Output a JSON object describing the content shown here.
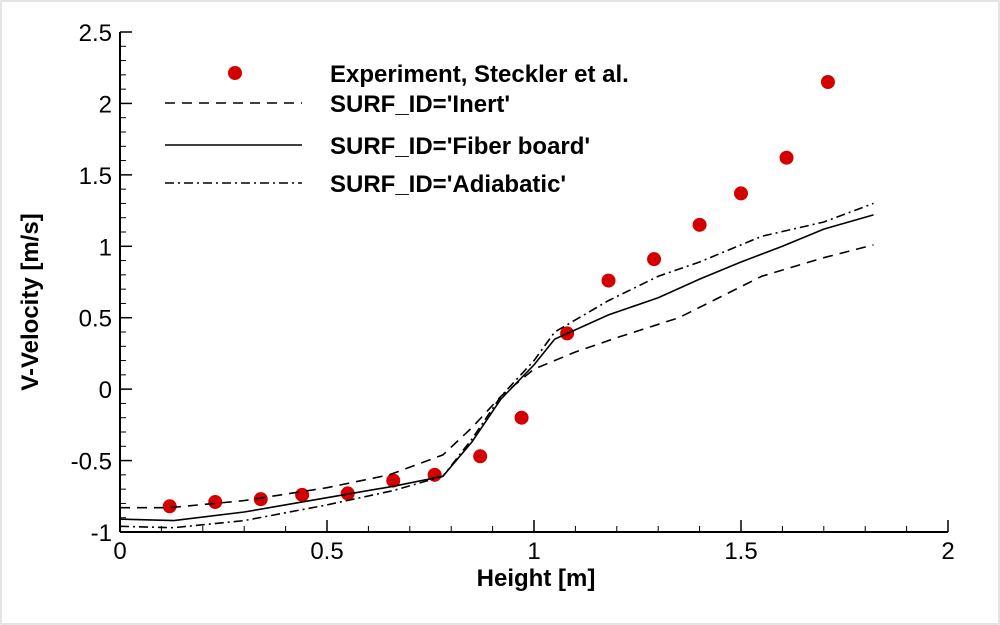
{
  "chart_data": {
    "type": "line",
    "xlabel": "Height [m]",
    "ylabel": "V-Velocity [m/s]",
    "xlim": [
      0,
      2
    ],
    "ylim": [
      -1,
      2.5
    ],
    "xticks": [
      "0",
      "0.5",
      "1",
      "1.5",
      "2"
    ],
    "yticks": [
      "-1",
      "-0.5",
      "0",
      "0.5",
      "1",
      "1.5",
      "2",
      "2.5"
    ],
    "grid": false,
    "legend_position": "top-left",
    "series": [
      {
        "name": "Experiment, Steckler et al.",
        "style": "markers",
        "color": "#d40000",
        "x": [
          0.12,
          0.23,
          0.34,
          0.44,
          0.55,
          0.66,
          0.76,
          0.87,
          0.97,
          1.08,
          1.18,
          1.29,
          1.4,
          1.5,
          1.61,
          1.71
        ],
        "y": [
          -0.82,
          -0.79,
          -0.77,
          -0.74,
          -0.73,
          -0.64,
          -0.6,
          -0.47,
          -0.2,
          0.39,
          0.76,
          0.91,
          1.15,
          1.37,
          1.62,
          2.15
        ]
      },
      {
        "name": "SURF_ID='Inert'",
        "style": "dashed",
        "color": "#000000",
        "x": [
          0.0,
          0.12,
          0.3,
          0.5,
          0.65,
          0.78,
          0.85,
          0.92,
          1.0,
          1.1,
          1.2,
          1.35,
          1.55,
          1.7,
          1.82
        ],
        "y": [
          -0.83,
          -0.83,
          -0.78,
          -0.69,
          -0.6,
          -0.46,
          -0.27,
          -0.05,
          0.14,
          0.26,
          0.36,
          0.5,
          0.79,
          0.92,
          1.01
        ]
      },
      {
        "name": "SURF_ID='Fiber board'",
        "style": "solid",
        "color": "#000000",
        "x": [
          0.0,
          0.13,
          0.3,
          0.5,
          0.66,
          0.78,
          0.85,
          0.92,
          1.0,
          1.05,
          1.18,
          1.3,
          1.4,
          1.5,
          1.6,
          1.7,
          1.82
        ],
        "y": [
          -0.91,
          -0.92,
          -0.86,
          -0.76,
          -0.68,
          -0.61,
          -0.37,
          -0.07,
          0.17,
          0.35,
          0.52,
          0.64,
          0.77,
          0.89,
          1.0,
          1.12,
          1.22
        ]
      },
      {
        "name": "SURF_ID='Adiabatic'",
        "style": "dashdot",
        "color": "#000000",
        "x": [
          0.0,
          0.13,
          0.3,
          0.5,
          0.66,
          0.78,
          0.85,
          0.92,
          1.0,
          1.05,
          1.18,
          1.3,
          1.4,
          1.55,
          1.7,
          1.82
        ],
        "y": [
          -0.96,
          -0.97,
          -0.92,
          -0.81,
          -0.71,
          -0.61,
          -0.35,
          -0.05,
          0.2,
          0.4,
          0.62,
          0.79,
          0.89,
          1.07,
          1.17,
          1.3
        ]
      }
    ]
  }
}
